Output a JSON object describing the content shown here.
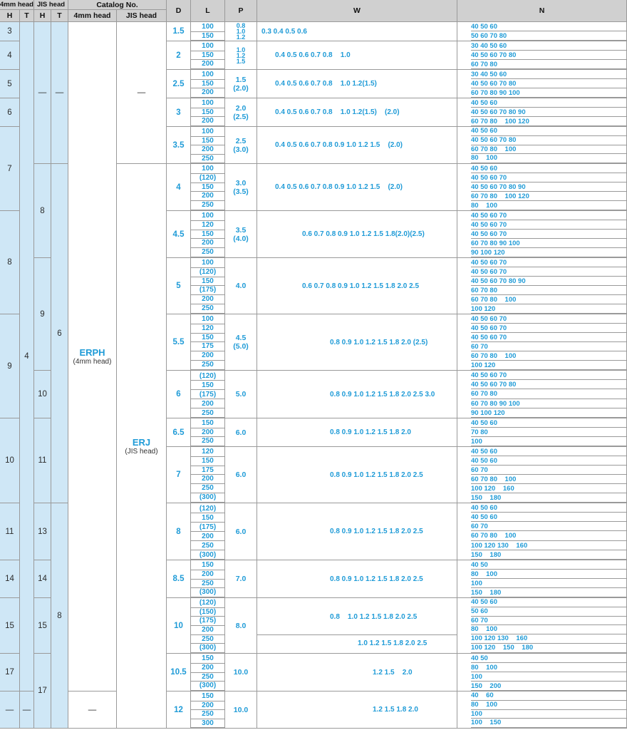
{
  "headers": {
    "h4": "4mm head",
    "hjis": "JIS head",
    "catalog": "Catalog No.",
    "h": "H",
    "t": "T",
    "cat4": "4mm head",
    "catjis": "JIS head",
    "d": "D",
    "l": "L",
    "p": "P",
    "w": "W",
    "n": "N"
  },
  "dash": "—",
  "erph": {
    "name": "ERPH",
    "sub": "(4mm head)"
  },
  "erj": {
    "name": "ERJ",
    "sub": "(JIS head)"
  },
  "h4_values": [
    "3",
    "4",
    "5",
    "6",
    "7",
    "8",
    "9",
    "10",
    "11",
    "14",
    "15",
    "17",
    "—"
  ],
  "t4_values": [
    "4",
    "—"
  ],
  "hjis_values": [
    "—",
    "8",
    "9",
    "10",
    "11",
    "13",
    "14",
    "15",
    "17"
  ],
  "tjis_values": [
    "—",
    "6",
    "8"
  ],
  "rows": [
    {
      "D": "1.5",
      "L": [
        "100",
        "150"
      ],
      "P": [
        "0.8",
        "1.0",
        "1.2"
      ],
      "W": "0.3 0.4 0.5 0.6",
      "N": [
        "40 50 60",
        "50 60 70 80"
      ]
    },
    {
      "D": "2",
      "L": [
        "100",
        "150",
        "200"
      ],
      "P": [
        "1.0",
        "1.2",
        "1.5"
      ],
      "W": "0.4 0.5 0.6 0.7 0.8    1.0",
      "N": [
        "30 40 50 60",
        "40 50 60 70 80",
        "60 70 80"
      ]
    },
    {
      "D": "2.5",
      "L": [
        "100",
        "150",
        "200"
      ],
      "P": [
        "1.5",
        "(2.0)"
      ],
      "W": "0.4 0.5 0.6 0.7 0.8    1.0 1.2(1.5)",
      "N": [
        "30 40 50 60",
        "40 50 60 70 80",
        "60 70 80 90 100"
      ]
    },
    {
      "D": "3",
      "L": [
        "100",
        "150",
        "200"
      ],
      "P": [
        "2.0",
        "(2.5)"
      ],
      "W": "0.4 0.5 0.6 0.7 0.8    1.0 1.2(1.5)    (2.0)",
      "N": [
        "40 50 60",
        "40 50 60 70 80 90",
        "60 70 80    100 120"
      ]
    },
    {
      "D": "3.5",
      "L": [
        "100",
        "150",
        "200",
        "250"
      ],
      "P": [
        "2.5",
        "(3.0)"
      ],
      "W": "0.4 0.5 0.6 0.7 0.8 0.9 1.0 1.2 1.5    (2.0)",
      "N": [
        "40 50 60",
        "40 50 60 70 80",
        "60 70 80    100",
        "80    100"
      ]
    },
    {
      "D": "4",
      "L": [
        "100",
        "(120)",
        "150",
        "200",
        "250"
      ],
      "P": [
        "3.0",
        "(3.5)"
      ],
      "W": "0.4 0.5 0.6 0.7 0.8 0.9 1.0 1.2 1.5    (2.0)",
      "N": [
        "40 50 60",
        "40 50 60 70",
        "40 50 60 70 80 90",
        "60 70 80    100 120",
        "80    100"
      ]
    },
    {
      "D": "4.5",
      "L": [
        "100",
        "120",
        "150",
        "200",
        "250"
      ],
      "P": [
        "3.5",
        "(4.0)"
      ],
      "W": "0.6 0.7 0.8 0.9 1.0 1.2 1.5 1.8(2.0)(2.5)",
      "N": [
        "40 50 60 70",
        "40 50 60 70",
        "40 50 60 70",
        "60 70 80 90 100",
        "90 100 120"
      ]
    },
    {
      "D": "5",
      "L": [
        "100",
        "(120)",
        "150",
        "(175)",
        "200",
        "250"
      ],
      "P": [
        "4.0"
      ],
      "W": "0.6 0.7 0.8 0.9 1.0 1.2 1.5 1.8 2.0 2.5",
      "N": [
        "40 50 60 70",
        "40 50 60 70",
        "40 50 60 70 80 90",
        "60 70 80",
        "60 70 80    100",
        "100 120"
      ]
    },
    {
      "D": "5.5",
      "L": [
        "100",
        "120",
        "150",
        "175",
        "200",
        "250"
      ],
      "P": [
        "4.5",
        "(5.0)"
      ],
      "W": "0.8 0.9 1.0 1.2 1.5 1.8 2.0 (2.5)",
      "N": [
        "40 50 60 70",
        "40 50 60 70",
        "40 50 60 70",
        "60 70",
        "60 70 80    100",
        "100 120"
      ]
    },
    {
      "D": "6",
      "L": [
        "(120)",
        "150",
        "(175)",
        "200",
        "250"
      ],
      "P": [
        "5.0"
      ],
      "W": "0.8 0.9 1.0 1.2 1.5 1.8 2.0 2.5 3.0",
      "N": [
        "40 50 60 70",
        "40 50 60 70 80",
        "60 70 80",
        "60 70 80 90 100",
        "90 100 120"
      ]
    },
    {
      "D": "6.5",
      "L": [
        "150",
        "200",
        "250"
      ],
      "P": [
        "6.0"
      ],
      "W": "0.8 0.9 1.0 1.2 1.5 1.8 2.0",
      "N": [
        "40 50 60",
        "70 80",
        "100"
      ]
    },
    {
      "D": "7",
      "L": [
        "120",
        "150",
        "175",
        "200",
        "250",
        "(300)"
      ],
      "P": [
        "6.0"
      ],
      "W": "0.8 0.9 1.0 1.2 1.5 1.8 2.0 2.5",
      "N": [
        "40 50 60",
        "40 50 60",
        "60 70",
        "60 70 80    100",
        "100 120    160",
        "150    180"
      ]
    },
    {
      "D": "8",
      "L": [
        "(120)",
        "150",
        "(175)",
        "200",
        "250",
        "(300)"
      ],
      "P": [
        "6.0"
      ],
      "W": "0.8 0.9 1.0 1.2 1.5 1.8 2.0 2.5",
      "N": [
        "40 50 60",
        "40 50 60",
        "60 70",
        "60 70 80    100",
        "100 120 130    160",
        "150    180"
      ]
    },
    {
      "D": "8.5",
      "L": [
        "150",
        "200",
        "250",
        "(300)"
      ],
      "P": [
        "7.0"
      ],
      "W": "0.8 0.9 1.0 1.2 1.5 1.8 2.0 2.5",
      "N": [
        "40 50",
        "80    100",
        "100",
        "150    180"
      ]
    },
    {
      "D": "10",
      "L": [
        "(120)",
        "(150)",
        "(175)",
        "200",
        "250",
        "(300)"
      ],
      "P": [
        "8.0"
      ],
      "W": "0.8    1.0 1.2 1.5 1.8 2.0 2.5",
      "W2": "1.0 1.2 1.5 1.8 2.0 2.5",
      "N": [
        "40 50 60",
        "50 60",
        "60 70",
        "80    100",
        "100 120 130    160",
        "100 120    150    180"
      ]
    },
    {
      "D": "10.5",
      "L": [
        "150",
        "200",
        "250",
        "(300)"
      ],
      "P": [
        "10.0"
      ],
      "W": "1.2 1.5    2.0",
      "N": [
        "40 50",
        "80    100",
        "100",
        "150    200"
      ]
    },
    {
      "D": "12",
      "L": [
        "150",
        "200",
        "250",
        "300"
      ],
      "P": [
        "10.0"
      ],
      "W": "1.2 1.5 1.8 2.0",
      "N": [
        "40    60",
        "80    100",
        "100",
        "100    150"
      ]
    }
  ]
}
